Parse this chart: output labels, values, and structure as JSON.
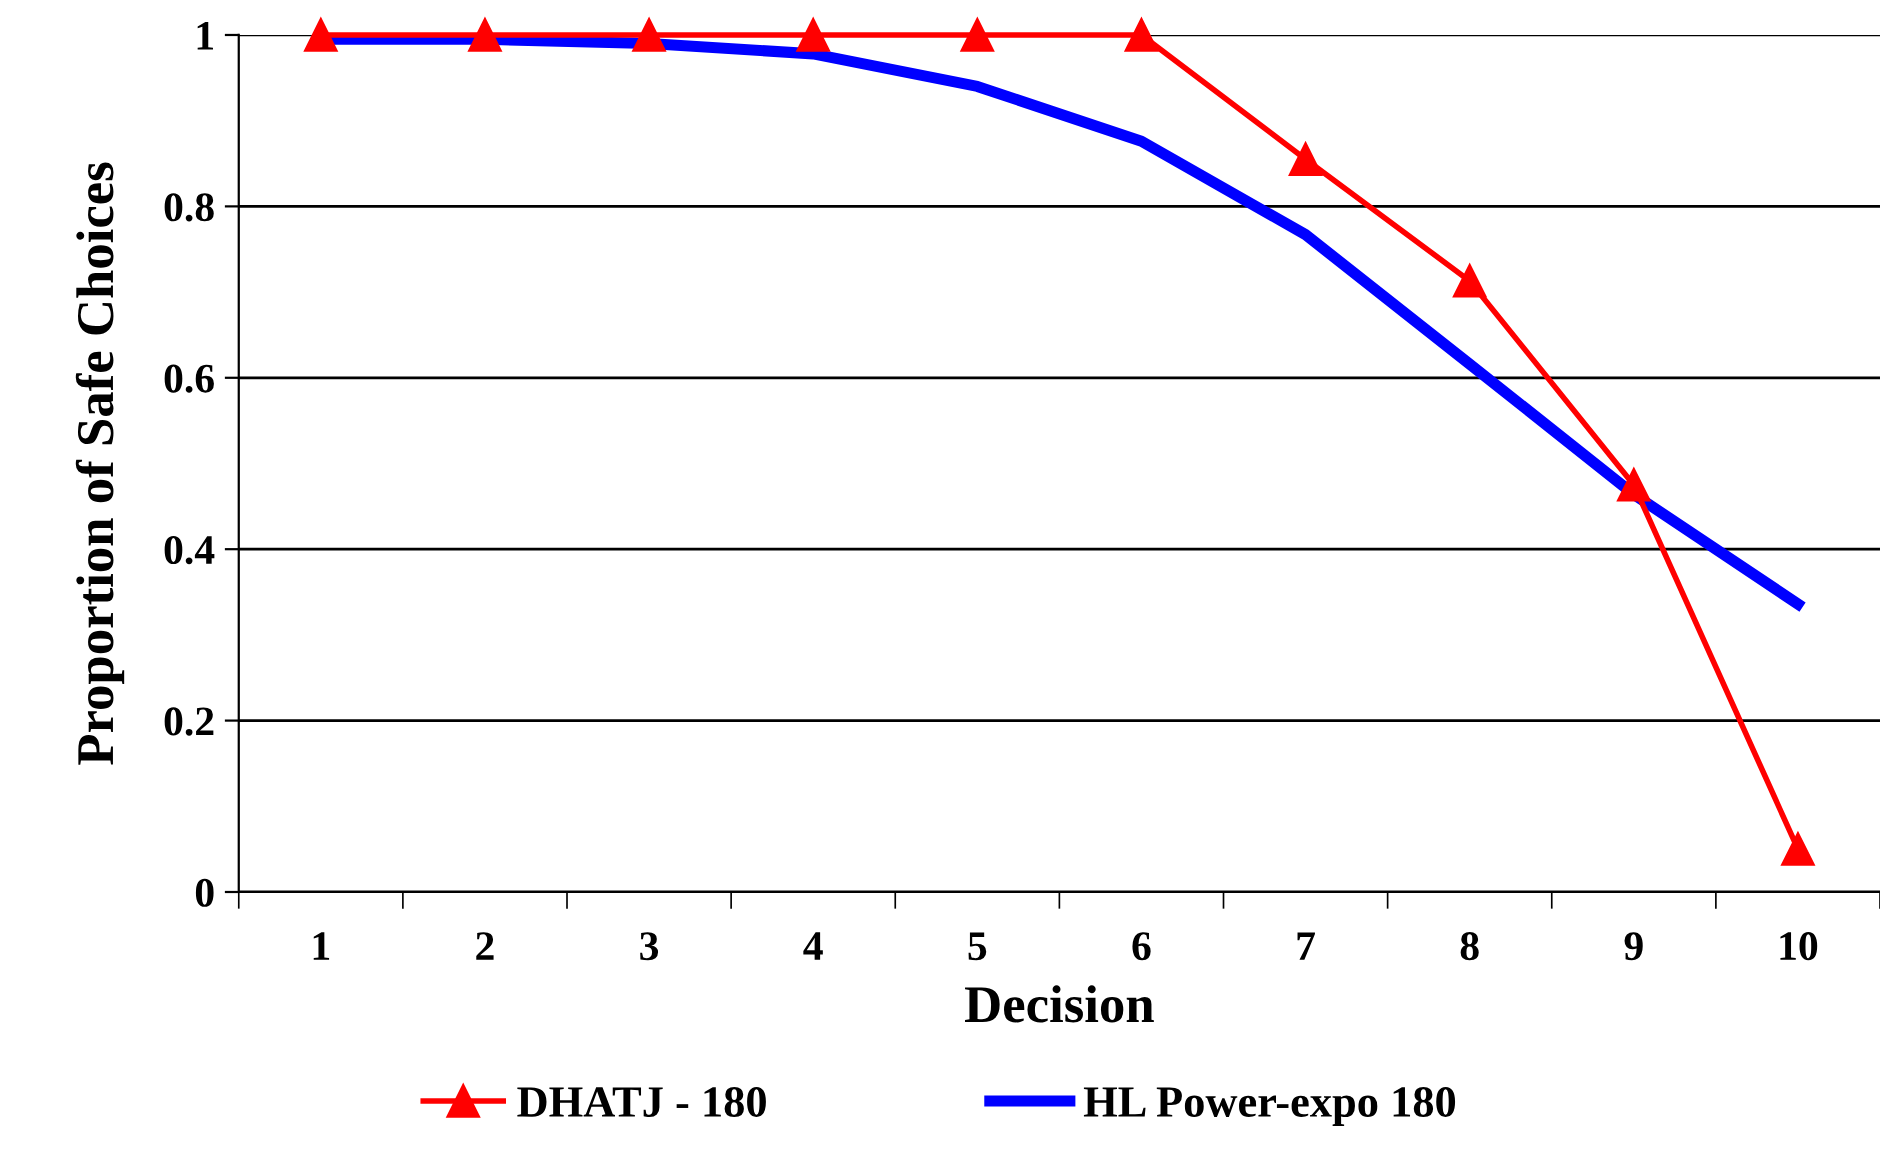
{
  "chart_data": {
    "type": "line",
    "xlabel": "Decision",
    "ylabel": "Proportion of Safe Choices",
    "categories": [
      "1",
      "2",
      "3",
      "4",
      "5",
      "6",
      "7",
      "8",
      "9",
      "10"
    ],
    "series": [
      {
        "name": "DHATJ - 180",
        "color": "#ff0000",
        "marker": "triangle",
        "values": [
          1,
          1,
          1,
          1,
          1,
          1,
          0.855,
          0.713,
          0.475,
          0.05
        ]
      },
      {
        "name": "HL Power-expo 180",
        "color": "#0000ff",
        "marker": "none",
        "values": [
          0.995,
          0.995,
          0.99,
          0.978,
          0.94,
          0.876,
          0.767,
          0.616,
          0.464,
          0.336
        ]
      }
    ],
    "ylim": [
      0,
      1
    ],
    "yticks": [
      0,
      0.2,
      0.4,
      0.6,
      0.8,
      1
    ],
    "grid": "y",
    "legend": "bottom",
    "line_style": "solid"
  }
}
